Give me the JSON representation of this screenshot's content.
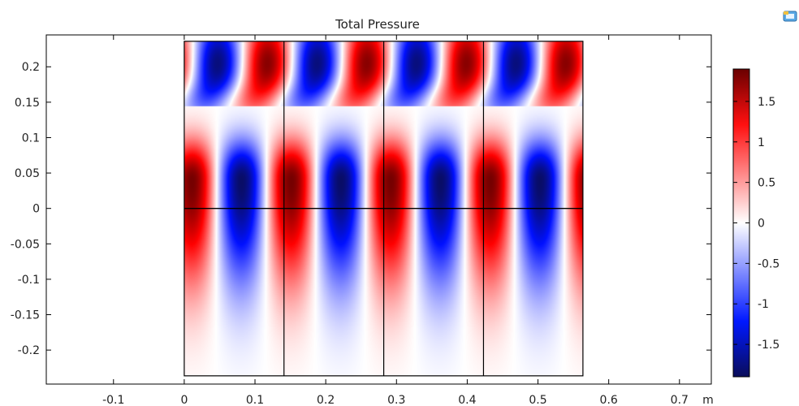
{
  "chart_data": {
    "type": "heatmap",
    "title": "Total Pressure",
    "x_unit": "m",
    "xlim": [
      -0.195,
      0.745
    ],
    "ylim": [
      -0.248,
      0.245
    ],
    "x_ticks": [
      -0.1,
      0,
      0.1,
      0.2,
      0.3,
      0.4,
      0.5,
      0.6,
      0.7
    ],
    "x_tick_labels": [
      "-0.1",
      "0",
      "0.1",
      "0.2",
      "0.3",
      "0.4",
      "0.5",
      "0.6",
      "0.7"
    ],
    "y_ticks": [
      0.2,
      0.15,
      0.1,
      0.05,
      0,
      -0.05,
      -0.1,
      -0.15,
      -0.2
    ],
    "y_tick_labels": [
      "0.2",
      "0.15",
      "0.1",
      "0.05",
      "0",
      "-0.05",
      "-0.1",
      "-0.15",
      "-0.2"
    ],
    "domain": {
      "x_range": [
        0,
        0.564
      ],
      "y_range": [
        -0.236,
        0.236
      ],
      "cell_boundaries_x": [
        0,
        0.141,
        0.282,
        0.423,
        0.564
      ],
      "centerline_y": 0
    },
    "colorbar": {
      "colormap": "blue-white-red",
      "range": [
        -1.9,
        1.9
      ],
      "ticks": [
        1.5,
        1,
        0.5,
        0,
        -0.5,
        -1,
        -1.5
      ],
      "tick_labels": [
        "1.5",
        "1",
        "0.5",
        "0",
        "-0.5",
        "-1",
        "-1.5"
      ],
      "colors": [
        "#0a0d5a",
        "#0010ff",
        "#ffffff",
        "#ff0000",
        "#6a0000"
      ]
    },
    "field_features": {
      "period_x": 0.141,
      "upper_peak_y": 0.205,
      "lower_peak_y": 0.04,
      "max_value": 1.85,
      "min_value": -1.85
    }
  },
  "toolbar": {
    "icon": "app-window-icon"
  }
}
